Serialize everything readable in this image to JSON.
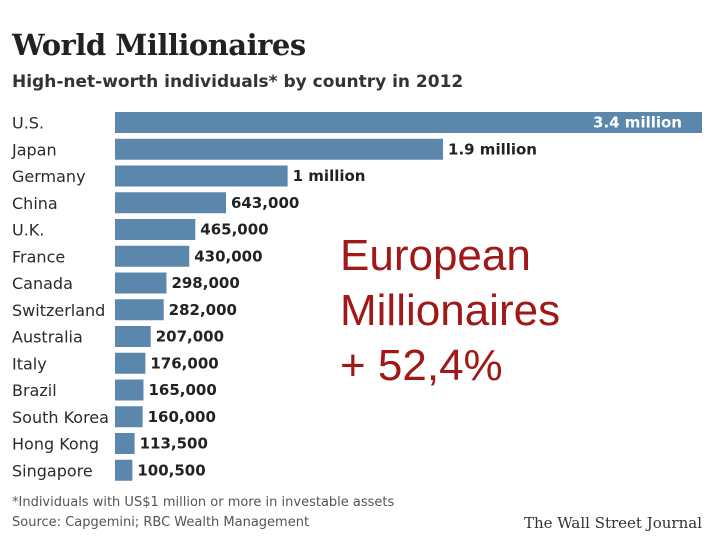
{
  "header": {
    "title": "World Millionaires",
    "subtitle": "High-net-worth individuals* by country in 2012"
  },
  "chart_data": {
    "type": "bar",
    "orientation": "horizontal",
    "title": "World Millionaires",
    "subtitle": "High-net-worth individuals* by country in 2012",
    "categories": [
      "U.S.",
      "Japan",
      "Germany",
      "China",
      "U.K.",
      "France",
      "Canada",
      "Switzerland",
      "Australia",
      "Italy",
      "Brazil",
      "South Korea",
      "Hong Kong",
      "Singapore"
    ],
    "values": [
      3400000,
      1900000,
      1000000,
      643000,
      465000,
      430000,
      298000,
      282000,
      207000,
      176000,
      165000,
      160000,
      113500,
      100500
    ],
    "value_labels": [
      "3.4 million",
      "1.9 million",
      "1 million",
      "643,000",
      "465,000",
      "430,000",
      "298,000",
      "282,000",
      "207,000",
      "176,000",
      "165,000",
      "160,000",
      "113,500",
      "100,500"
    ],
    "xlim": [
      0,
      3400000
    ],
    "grid": false,
    "bar_color": "#5b87ac"
  },
  "footer": {
    "footnote": "*Individuals with US$1 million or more in investable assets",
    "source": "Source: Capgemini; RBC Wealth Management",
    "publisher": "The Wall Street Journal"
  },
  "overlay": {
    "line1": "European",
    "line2": "Millionaires",
    "line3": "+ 52,4%",
    "color": "#a01818"
  }
}
